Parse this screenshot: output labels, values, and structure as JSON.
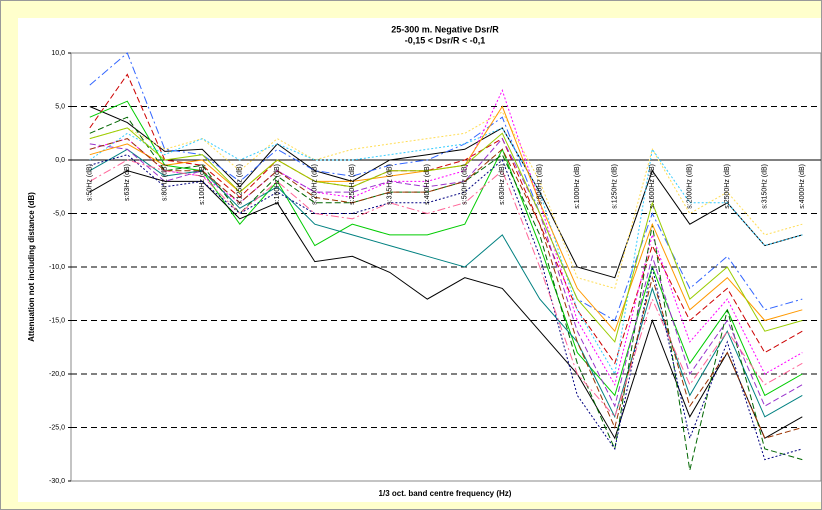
{
  "chart_data": {
    "type": "line",
    "title": "25-300 m.  Negative Dsr/R",
    "subtitle": "-0,15 < Dsr/R < -0,1",
    "x_label": "1/3 oct. band centre frequency (Hz)",
    "y_label": "Attenuation not including distance (dB)",
    "categories": [
      "s:50Hz (dB)",
      "s:63Hz (dB)",
      "s:80Hz (dB)",
      "s:100Hz (dB)",
      "s:125Hz (dB)",
      "s:160Hz (dB)",
      "s:200Hz (dB)",
      "s:250Hz (dB)",
      "s:315Hz (dB)",
      "s:400Hz (dB)",
      "s:500Hz (dB)",
      "s:630Hz (dB)",
      "s:800Hz (dB)",
      "s:1000Hz (dB)",
      "s:1250Hz (dB)",
      "s:1600Hz (dB)",
      "s:2000Hz (dB)",
      "s:2500Hz (dB)",
      "s:3150Hz (dB)",
      "s:4000Hz (dB)"
    ],
    "ylim": [
      -30,
      10
    ],
    "yticks": [
      {
        "value": -30,
        "label": "-30,0"
      },
      {
        "value": -25,
        "label": "-25,0"
      },
      {
        "value": -20,
        "label": "-20,0"
      },
      {
        "value": -15,
        "label": "-15,0"
      },
      {
        "value": -10,
        "label": "-10,0"
      },
      {
        "value": -5,
        "label": "-5,0"
      },
      {
        "value": 0,
        "label": "0,0"
      },
      {
        "value": 5,
        "label": "5,0"
      },
      {
        "value": 10,
        "label": "10,0"
      }
    ],
    "grid": true,
    "series": [
      {
        "color": "#000000",
        "dash": "",
        "values": [
          5,
          3.5,
          0.8,
          1,
          -2.5,
          1.5,
          -1,
          -2,
          0,
          0.5,
          1,
          3,
          -3,
          -10,
          -11,
          -1,
          -6,
          -4,
          -8,
          -7
        ]
      },
      {
        "color": "#3366ff",
        "dash": "8,3,2,3",
        "values": [
          7,
          10,
          1,
          0.5,
          -2,
          1,
          -1,
          -1.5,
          -0.5,
          0,
          1.5,
          4,
          -5,
          -13,
          -15,
          -5,
          -12,
          -9,
          -14,
          -13
        ]
      },
      {
        "color": "#cc0000",
        "dash": "6,3",
        "values": [
          3,
          8,
          0,
          -0.5,
          -3.5,
          0,
          -2,
          -2.5,
          -1,
          -1,
          0,
          2,
          -6,
          -14,
          -19,
          -8,
          -15,
          -12,
          -18,
          -16
        ]
      },
      {
        "color": "#00cc00",
        "dash": "",
        "values": [
          4,
          5.5,
          -0.5,
          -1,
          -6,
          -2,
          -8,
          -6,
          -7,
          -7,
          -6,
          1,
          -8,
          -18,
          -22,
          -10,
          -19,
          -14,
          -22,
          -20
        ]
      },
      {
        "color": "#ff00ff",
        "dash": "2,2",
        "values": [
          1,
          2,
          -1,
          -1.5,
          -4,
          -1,
          -3,
          -3.5,
          -2,
          -2,
          -1,
          6.5,
          -4,
          -15,
          -21,
          -7,
          -17,
          -13,
          -20,
          -18
        ]
      },
      {
        "color": "#000000",
        "dash": "",
        "values": [
          -3,
          -1,
          -2,
          -2,
          -5.5,
          -4,
          -9.5,
          -9,
          -10.5,
          -13,
          -11,
          -12,
          -16,
          -20,
          -26,
          -15,
          -24,
          -18,
          -26,
          -24
        ]
      },
      {
        "color": "#008080",
        "dash": "",
        "values": [
          -1,
          1,
          -1.5,
          -1,
          -4.5,
          -2.5,
          -6,
          -7,
          -8,
          -9,
          -10,
          -7,
          -13,
          -17,
          -24,
          -12,
          -22,
          -16,
          -24,
          -22
        ]
      },
      {
        "color": "#ffdd55",
        "dash": "2,2",
        "values": [
          2,
          3,
          1,
          2,
          -1,
          2,
          0,
          1,
          1.5,
          2,
          2.5,
          4.5,
          -2,
          -11,
          -12,
          1,
          -5,
          -3,
          -7,
          -6
        ]
      },
      {
        "color": "#33ccff",
        "dash": "2,2",
        "values": [
          0,
          2.5,
          0.5,
          2,
          0,
          1.5,
          0,
          0,
          0.5,
          1,
          1.5,
          3,
          -3,
          -14,
          -20,
          1,
          -4,
          -4,
          -8,
          -7
        ]
      },
      {
        "color": "#006600",
        "dash": "6,3",
        "values": [
          2.5,
          4,
          -1,
          -0.5,
          -5,
          -1.5,
          -4,
          -4,
          -3,
          -3,
          -2,
          0.5,
          -7,
          -19,
          -27,
          -6,
          -29,
          -14,
          -27,
          -28
        ]
      },
      {
        "color": "#9933cc",
        "dash": "6,3",
        "values": [
          1.5,
          1,
          -2,
          -1,
          -4,
          -1,
          -3,
          -3,
          -2,
          -2.5,
          -2,
          2,
          -5,
          -16,
          -23,
          -9,
          -20,
          -15,
          -23,
          -21
        ]
      },
      {
        "color": "#ff9900",
        "dash": "",
        "values": [
          0.5,
          1.5,
          -0.5,
          0,
          -3,
          0,
          -2,
          -2,
          -1.5,
          -1,
          -0.5,
          5,
          -4,
          -12,
          -16,
          -6,
          -14,
          -11,
          -15,
          -14
        ]
      },
      {
        "color": "#000080",
        "dash": "2,2",
        "values": [
          -0.5,
          0.5,
          -2.5,
          -2,
          -5,
          -3,
          -5,
          -5,
          -4,
          -4,
          -3,
          0,
          -9,
          -22,
          -27,
          -10,
          -26,
          -17,
          -28,
          -27
        ]
      },
      {
        "color": "#993300",
        "dash": "6,3",
        "values": [
          1,
          2,
          -1,
          -1,
          -4,
          -1,
          -3.5,
          -4,
          -3,
          -3,
          -2,
          1,
          -6,
          -17,
          -25,
          -11,
          -23,
          -18,
          -26,
          -25
        ]
      },
      {
        "color": "#99cc00",
        "dash": "",
        "values": [
          2,
          3,
          0,
          0.5,
          -3,
          0,
          -2,
          -2.5,
          -1,
          -1,
          -0.5,
          2.5,
          -5,
          -13,
          -17,
          -4,
          -13,
          -10,
          -16,
          -15
        ]
      },
      {
        "color": "#ff6699",
        "dash": "8,3,2,3",
        "values": [
          -2,
          0,
          -1,
          -1.5,
          -5,
          -2,
          -5,
          -5.5,
          -4,
          -5,
          -4,
          -1,
          -10,
          -20,
          -24,
          -13,
          -21,
          -16,
          -21,
          -19
        ]
      }
    ]
  }
}
